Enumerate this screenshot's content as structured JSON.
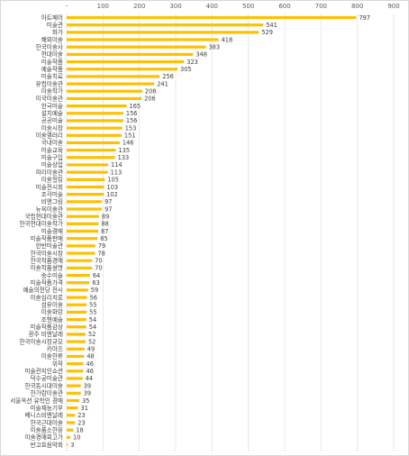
{
  "chart_data": {
    "type": "bar",
    "orientation": "horizontal",
    "title": "",
    "xlabel": "",
    "ylabel": "",
    "xlim": [
      0,
      900
    ],
    "x_ticks": [
      0,
      100,
      200,
      300,
      400,
      500,
      600,
      700,
      800,
      900
    ],
    "x_tick_labels": [
      "-",
      "100",
      "200",
      "300",
      "400",
      "500",
      "600",
      "700",
      "800",
      "900"
    ],
    "grid": true,
    "legend": "none",
    "bar_color": "#FFC000",
    "categories": [
      "아트페어",
      "미술관",
      "화가",
      "해외미술",
      "한국미술사",
      "현대미술",
      "미술작품",
      "예술작품",
      "미술치료",
      "유럽미술관",
      "미술작가",
      "미국미술관",
      "한국미술",
      "설치예술",
      "공공미술",
      "미술시장",
      "미술갤러리",
      "국내미술",
      "미술교육",
      "미술구입",
      "미술상업",
      "파리미술관",
      "미술힐링",
      "미술전시회",
      "조각미술",
      "비엔그림",
      "뉴욕미술관",
      "국립현대미술관",
      "한국현대미술작가",
      "미술경매",
      "미술작품판매",
      "한반미술관",
      "한국미술시장",
      "한국작품경매",
      "미술작품설명",
      "숭수미술",
      "미술작품가격",
      "예술의전당 전시",
      "미술심리치료",
      "섬유미술",
      "미술화랑",
      "조형예술",
      "미술작품감상",
      "광주 비엔날레",
      "한국미술시장규모",
      "키아프",
      "미술한류",
      "위작",
      "미술관지인쇼션",
      "덕수궁미술관",
      "한국동시대미술",
      "한가람미술관",
      "서울옥션 유학인 경매",
      "미술재능기부",
      "베니스비엔날레",
      "한국근대미술",
      "미술품소한용",
      "미술경매회고가",
      "반고흐음악회"
    ],
    "values": [
      797,
      541,
      529,
      418,
      383,
      348,
      323,
      305,
      256,
      241,
      208,
      206,
      165,
      156,
      156,
      153,
      151,
      146,
      135,
      133,
      114,
      113,
      105,
      103,
      102,
      97,
      97,
      89,
      88,
      87,
      85,
      79,
      78,
      70,
      70,
      64,
      63,
      59,
      56,
      55,
      55,
      54,
      54,
      52,
      52,
      49,
      48,
      46,
      46,
      44,
      39,
      39,
      35,
      31,
      23,
      23,
      18,
      10,
      3
    ]
  }
}
